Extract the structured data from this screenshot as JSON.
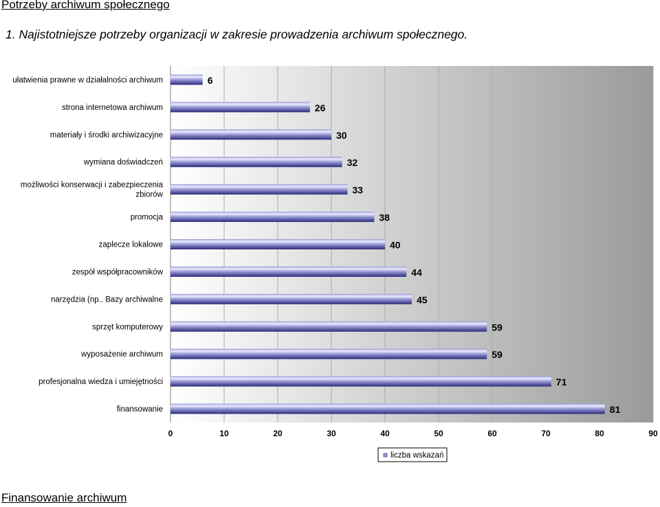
{
  "document": {
    "heading": "Potrzeby archiwum społecznego",
    "caption": "1.  Najistotniejsze potrzeby organizacji w zakresie prowadzenia archiwum społecznego.",
    "footer_heading": "Finansowanie archiwum"
  },
  "chart_data": {
    "type": "bar",
    "orientation": "horizontal",
    "categories": [
      [
        "ułatwienia prawne w działalności archiwum"
      ],
      [
        "strona internetowa archiwum"
      ],
      [
        "materiały i środki archiwizacyjne"
      ],
      [
        "wymiana doświadczeń"
      ],
      [
        "możliwości konserwacji i zabezpieczenia",
        "zbiorów"
      ],
      [
        "promocja"
      ],
      [
        "zaplecze lokalowe"
      ],
      [
        "zespół współpracowników"
      ],
      [
        "narzędzia (np.. Bazy archiwalne"
      ],
      [
        "sprzęt komputerowy"
      ],
      [
        "wyposażenie archiwum"
      ],
      [
        "profesjonalna wiedza i umiejętności"
      ],
      [
        "finansowanie"
      ]
    ],
    "series": [
      {
        "name": "liczba wskazań",
        "values": [
          6,
          26,
          30,
          32,
          33,
          38,
          40,
          44,
          45,
          59,
          59,
          71,
          81
        ]
      }
    ],
    "xlim": [
      0,
      90
    ],
    "x_ticks": [
      0,
      10,
      20,
      30,
      40,
      50,
      60,
      70,
      80,
      90
    ],
    "grid": true,
    "legend": "bottom-center",
    "colors": {
      "bar_dark": "#2a2a78",
      "bar_light": "#ececff",
      "bar_mid": "#9a9ad8",
      "gridline": "#a8a8a8",
      "plot_bg_left": "#ffffff",
      "plot_bg_right": "#9a9a9a"
    }
  }
}
